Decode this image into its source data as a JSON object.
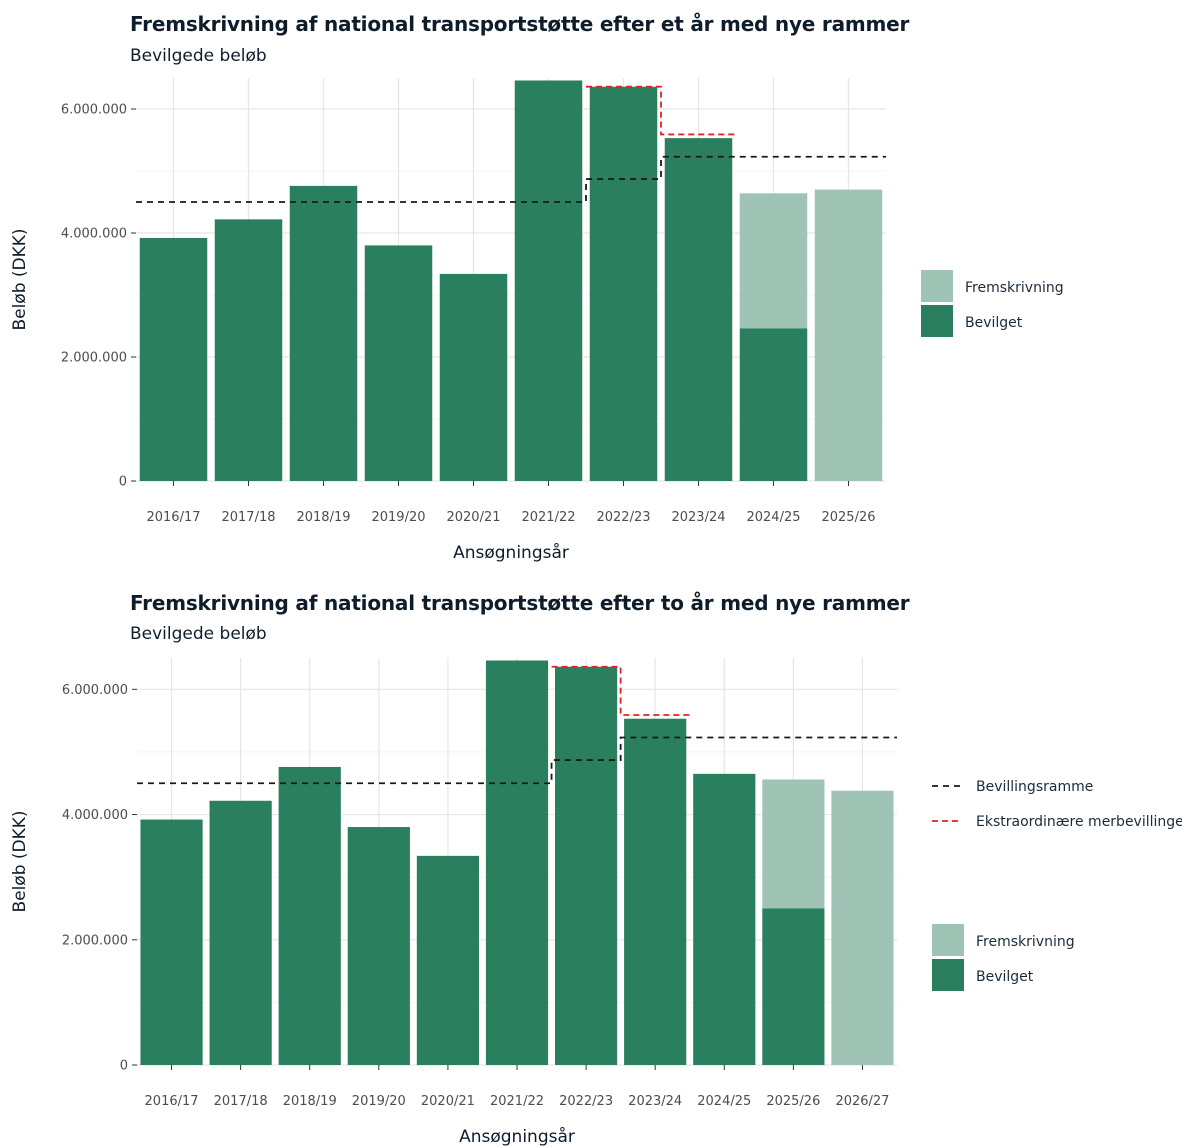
{
  "labels": {
    "ylabel": "Beløb (DKK)",
    "xlabel": "Ansøgningsår",
    "legend_fill": [
      "Fremskrivning",
      "Bevilget"
    ],
    "legend_lines": [
      "Bevillingsramme",
      "Ekstraordinære merbevillinger"
    ]
  },
  "colors": {
    "bevilget": "#2a7f5f",
    "fremskrivning": "#9fc4b6",
    "ramme": "#1a1a1a",
    "ekstra": "#e8201f",
    "grid": "#e6e6e6"
  },
  "chart_data": [
    {
      "type": "bar",
      "title": "Fremskrivning af national transportstøtte efter et år med nye rammer",
      "subtitle": "Bevilgede beløb",
      "xlabel": "Ansøgningsår",
      "ylabel": "Beløb (DKK)",
      "ylim": [
        0,
        6500000
      ],
      "yticks": [
        0,
        2000000,
        4000000,
        6000000
      ],
      "ytick_labels": [
        "0",
        "2.000.000",
        "4.000.000",
        "6.000.000"
      ],
      "grid": true,
      "legend_position": "right",
      "categories": [
        "2016/17",
        "2017/18",
        "2018/19",
        "2019/20",
        "2020/21",
        "2021/22",
        "2022/23",
        "2023/24",
        "2024/25",
        "2025/26"
      ],
      "series": [
        {
          "name": "Bevilget",
          "values": [
            3920000,
            4220000,
            4760000,
            3800000,
            3340000,
            6460000,
            6360000,
            5530000,
            2460000,
            0
          ]
        },
        {
          "name": "Fremskrivning",
          "values": [
            0,
            0,
            0,
            0,
            0,
            0,
            0,
            0,
            2180000,
            4700000
          ]
        }
      ],
      "bevillingsramme": {
        "name": "Bevillingsramme",
        "values": [
          4500000,
          4500000,
          4500000,
          4500000,
          4500000,
          4500000,
          4870000,
          5230000,
          5230000,
          5230000
        ]
      },
      "ekstraordinaere": {
        "name": "Ekstraordinære merbevillinger",
        "values": [
          null,
          null,
          null,
          null,
          null,
          null,
          6360000,
          5590000,
          null,
          null
        ]
      }
    },
    {
      "type": "bar",
      "title": "Fremskrivning af national transportstøtte efter to år med nye rammer",
      "subtitle": "Bevilgede beløb",
      "xlabel": "Ansøgningsår",
      "ylabel": "Beløb (DKK)",
      "ylim": [
        0,
        6500000
      ],
      "yticks": [
        0,
        2000000,
        4000000,
        6000000
      ],
      "ytick_labels": [
        "0",
        "2.000.000",
        "4.000.000",
        "6.000.000"
      ],
      "grid": true,
      "legend_position": "right",
      "categories": [
        "2016/17",
        "2017/18",
        "2018/19",
        "2019/20",
        "2020/21",
        "2021/22",
        "2022/23",
        "2023/24",
        "2024/25",
        "2025/26",
        "2026/27"
      ],
      "series": [
        {
          "name": "Bevilget",
          "values": [
            3920000,
            4220000,
            4760000,
            3800000,
            3340000,
            6460000,
            6360000,
            5530000,
            4650000,
            2500000,
            0
          ]
        },
        {
          "name": "Fremskrivning",
          "values": [
            0,
            0,
            0,
            0,
            0,
            0,
            0,
            0,
            0,
            2060000,
            4380000
          ]
        }
      ],
      "bevillingsramme": {
        "name": "Bevillingsramme",
        "values": [
          4500000,
          4500000,
          4500000,
          4500000,
          4500000,
          4500000,
          4870000,
          5230000,
          5230000,
          5230000,
          5230000
        ]
      },
      "ekstraordinaere": {
        "name": "Ekstraordinære merbevillinger",
        "values": [
          null,
          null,
          null,
          null,
          null,
          null,
          6360000,
          5590000,
          null,
          null,
          null
        ]
      }
    }
  ]
}
